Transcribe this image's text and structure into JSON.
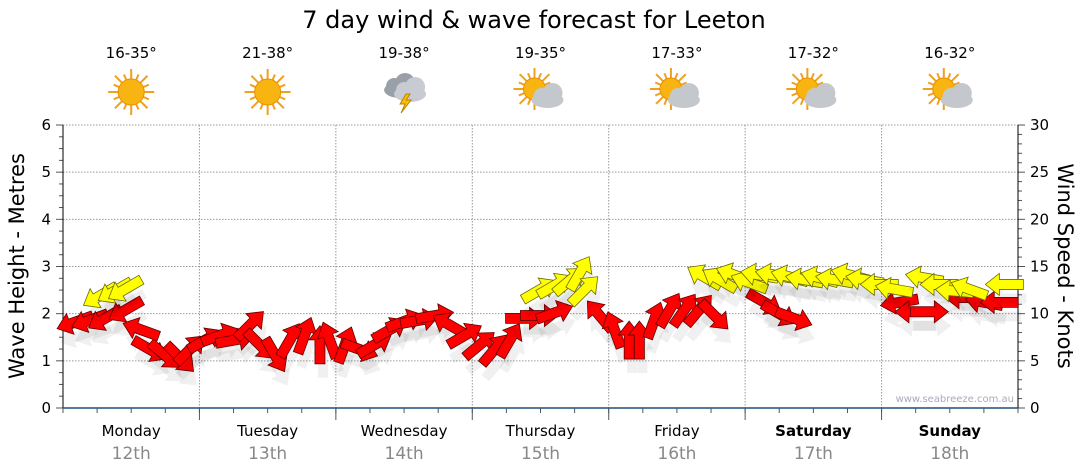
{
  "chart_data": {
    "type": "scatter",
    "title": "7 day wind & wave forecast for Leeton",
    "ylabel_left": "Wave Height - Metres",
    "ylabel_right": "Wind Speed - Knots",
    "ylim_left": [
      0,
      6
    ],
    "ylim_right": [
      0,
      30
    ],
    "yticks_left": [
      "0",
      "1",
      "2",
      "3",
      "4",
      "5",
      "6"
    ],
    "yticks_right": [
      "0",
      "5",
      "10",
      "15",
      "20",
      "25",
      "30"
    ],
    "grid": true,
    "watermark": "www.seabreeze.com.au",
    "days": [
      {
        "name": "Monday",
        "date": "12th",
        "temps": "16-35°",
        "icon": "sunny-icon",
        "bold": false
      },
      {
        "name": "Tuesday",
        "date": "13th",
        "temps": "21-38°",
        "icon": "sunny-icon",
        "bold": false
      },
      {
        "name": "Wednesday",
        "date": "14th",
        "temps": "19-38°",
        "icon": "storm-icon",
        "bold": false
      },
      {
        "name": "Thursday",
        "date": "15th",
        "temps": "19-35°",
        "icon": "partly-cloudy-icon",
        "bold": false
      },
      {
        "name": "Friday",
        "date": "16th",
        "temps": "17-33°",
        "icon": "partly-cloudy-icon",
        "bold": false
      },
      {
        "name": "Saturday",
        "date": "17th",
        "temps": "17-32°",
        "icon": "partly-cloudy-icon",
        "bold": true
      },
      {
        "name": "Sunday",
        "date": "18th",
        "temps": "16-32°",
        "icon": "partly-cloudy-icon",
        "bold": true
      }
    ],
    "series": [
      {
        "name": "wind-red",
        "color": "#ff0000",
        "points_hour_knots_dir": [
          [
            2.1,
            9.1,
            250
          ],
          [
            4.7,
            9.3,
            250
          ],
          [
            7.4,
            9.5,
            240
          ],
          [
            11,
            10.4,
            240
          ],
          [
            13.7,
            8.3,
            290
          ],
          [
            15.3,
            6.2,
            120
          ],
          [
            17.9,
            5.6,
            130
          ],
          [
            20.6,
            5.3,
            135
          ],
          [
            22.3,
            6.2,
            45
          ],
          [
            25,
            7.2,
            60
          ],
          [
            27.6,
            7.7,
            70
          ],
          [
            30.2,
            7.2,
            80
          ],
          [
            32.9,
            8.8,
            45
          ],
          [
            34.6,
            6.7,
            135
          ],
          [
            37.3,
            5.6,
            150
          ],
          [
            39.9,
            7.2,
            30
          ],
          [
            42.5,
            7.7,
            20
          ],
          [
            45.2,
            6.7,
            0
          ],
          [
            46.9,
            7.2,
            340
          ],
          [
            49.6,
            6.7,
            20
          ],
          [
            52.2,
            6.2,
            110
          ],
          [
            54.8,
            6.7,
            60
          ],
          [
            57.5,
            8.3,
            60
          ],
          [
            60.1,
            9.2,
            70
          ],
          [
            62.7,
            9.3,
            80
          ],
          [
            65.4,
            9.8,
            80
          ],
          [
            68,
            8.8,
            300
          ],
          [
            70.7,
            7.7,
            60
          ],
          [
            73.3,
            6.7,
            50
          ],
          [
            75.9,
            6.2,
            40
          ],
          [
            78.6,
            7.2,
            30
          ],
          [
            81.2,
            9.5,
            90
          ],
          [
            83.8,
            9.8,
            90
          ],
          [
            86.5,
            10.1,
            70
          ],
          [
            94.4,
            9.8,
            320
          ],
          [
            97,
            8.3,
            340
          ],
          [
            99.6,
            7.2,
            0
          ],
          [
            101.4,
            7.2,
            0
          ],
          [
            104,
            9.3,
            20
          ],
          [
            106.7,
            10.4,
            30
          ],
          [
            109.3,
            10.4,
            35
          ],
          [
            111.9,
            10.4,
            40
          ],
          [
            114.6,
            9.8,
            135
          ],
          [
            123.4,
            11.2,
            120
          ],
          [
            126,
            10,
            120
          ],
          [
            128.6,
            9.5,
            110
          ],
          [
            147.1,
            11.2,
            260
          ],
          [
            149.7,
            10.2,
            270
          ],
          [
            152.4,
            10.2,
            90
          ],
          [
            158.5,
            11.7,
            270
          ],
          [
            162,
            11.2,
            280
          ],
          [
            164.7,
            11.2,
            270
          ]
        ]
      },
      {
        "name": "wind-yellow",
        "color": "#ffff00",
        "points_hour_knots_dir": [
          [
            6.5,
            11.9,
            240
          ],
          [
            9.1,
            12.4,
            240
          ],
          [
            10.9,
            12.6,
            240
          ],
          [
            83.8,
            12.5,
            60
          ],
          [
            86.5,
            13,
            60
          ],
          [
            89.1,
            13.5,
            50
          ],
          [
            90.9,
            14.3,
            30
          ],
          [
            91.7,
            12.5,
            45
          ],
          [
            112.8,
            13.9,
            300
          ],
          [
            115.5,
            13.6,
            300
          ],
          [
            118.1,
            14.1,
            290
          ],
          [
            120.7,
            13.3,
            290
          ],
          [
            122.5,
            14.1,
            280
          ],
          [
            125.1,
            14.1,
            280
          ],
          [
            127.8,
            13.9,
            285
          ],
          [
            130.4,
            13.6,
            280
          ],
          [
            133.1,
            13.8,
            285
          ],
          [
            135.7,
            13.6,
            280
          ],
          [
            138.4,
            14.1,
            285
          ],
          [
            141,
            13.6,
            280
          ],
          [
            143.6,
            13.1,
            270
          ],
          [
            146.2,
            12.6,
            280
          ],
          [
            151.5,
            13.8,
            280
          ],
          [
            154.1,
            13.1,
            270
          ],
          [
            156.8,
            12.4,
            275
          ],
          [
            159.4,
            12.6,
            290
          ],
          [
            165.6,
            13.1,
            270
          ]
        ]
      }
    ]
  }
}
